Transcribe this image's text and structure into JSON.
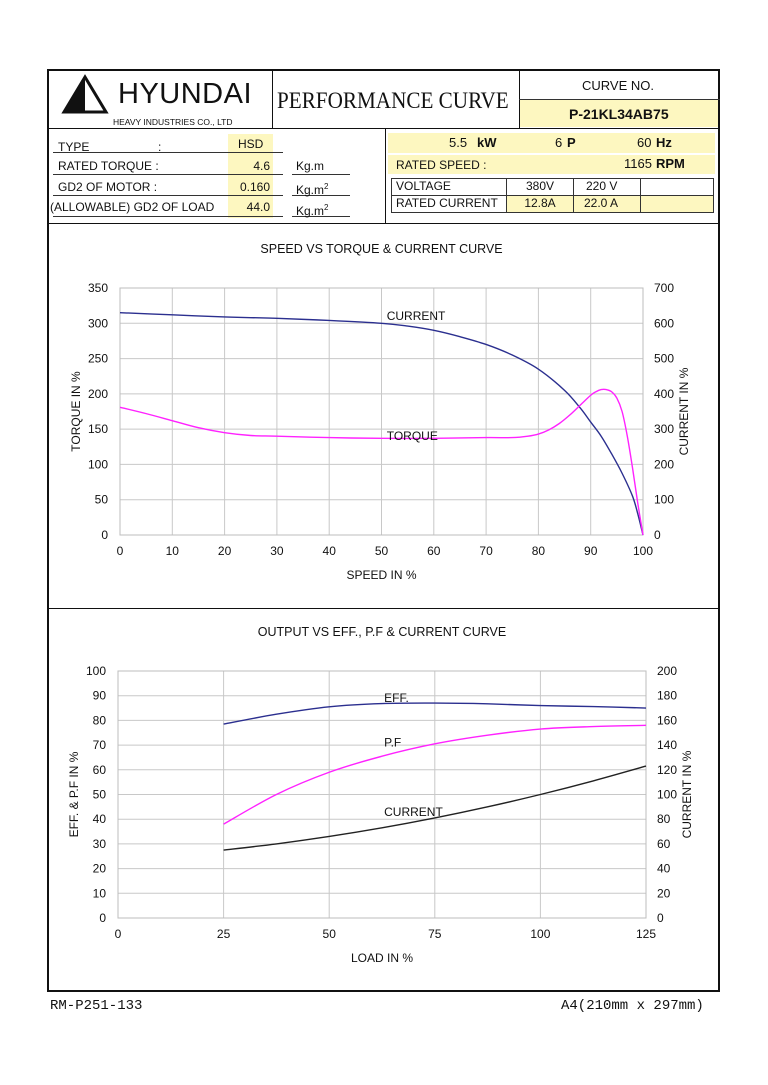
{
  "header": {
    "company_name": "HYUNDAI",
    "company_sub": "HEAVY INDUSTRIES CO., LTD",
    "doc_title": "PERFORMANCE  CURVE",
    "curve_no_label": "CURVE NO.",
    "curve_no": "P-21KL34AB75"
  },
  "specs": {
    "type_label": "TYPE",
    "type_colon": ":",
    "type_value": "HSD",
    "rated_torque_label": "RATED TORQUE :",
    "rated_torque_value": "4.6",
    "rated_torque_unit": "Kg.m",
    "gd2_motor_label": "GD2 OF MOTOR :",
    "gd2_motor_value": "0.160",
    "gd2_motor_unit": "Kg.m",
    "gd2_load_label": "(ALLOWABLE) GD2 OF LOAD",
    "gd2_load_value": "44.0",
    "gd2_load_unit": "Kg.m",
    "unit_sup": "2",
    "power_value": "5.5",
    "power_unit": "kW",
    "poles_value": "6",
    "poles_unit": "P",
    "freq_value": "60",
    "freq_unit": "Hz",
    "rated_speed_label": "RATED   SPEED :",
    "rated_speed_value": "1165",
    "rated_speed_unit": "RPM",
    "voltage_label": "VOLTAGE",
    "voltage_values": [
      "380V",
      "220 V",
      ""
    ],
    "current_label": "RATED CURRENT",
    "current_values": [
      "12.8A",
      "22.0 A",
      ""
    ]
  },
  "footer": {
    "left": "RM-P251-133",
    "right": "A4(210mm x 297mm)"
  },
  "colors": {
    "blue": "#2b2f8f",
    "magenta": "#ff22ff",
    "black": "#222222",
    "grid": "#c8c8c8",
    "highlight": "#fdf7c0"
  },
  "chart_data": [
    {
      "type": "line",
      "title": "SPEED VS TORQUE & CURRENT CURVE",
      "xlabel": "SPEED IN %",
      "ylabel": "TORQUE IN %",
      "y2label": "CURRENT IN %",
      "xlim": [
        0,
        100
      ],
      "ylim": [
        0,
        350
      ],
      "y2lim": [
        0,
        700
      ],
      "xticks": [
        "0",
        "10",
        "20",
        "30",
        "40",
        "50",
        "60",
        "70",
        "80",
        "90",
        "100"
      ],
      "yticks": [
        "0",
        "50",
        "100",
        "150",
        "200",
        "250",
        "300",
        "350"
      ],
      "y2ticks": [
        "0",
        "100",
        "200",
        "300",
        "400",
        "500",
        "600",
        "700"
      ],
      "grid": true,
      "series": [
        {
          "name": "CURRENT",
          "axis": "right",
          "color": "blue",
          "x": [
            0,
            10,
            20,
            30,
            40,
            50,
            55,
            60,
            65,
            70,
            75,
            80,
            85,
            88,
            90,
            92,
            94,
            96,
            98,
            99,
            100
          ],
          "y": [
            630,
            624,
            618,
            614,
            608,
            600,
            592,
            580,
            562,
            540,
            510,
            470,
            410,
            360,
            320,
            280,
            230,
            175,
            110,
            60,
            0
          ]
        },
        {
          "name": "TORQUE",
          "axis": "left",
          "color": "magenta",
          "x": [
            0,
            5,
            10,
            15,
            20,
            25,
            30,
            40,
            50,
            60,
            70,
            75,
            78,
            80,
            82,
            84,
            86,
            88,
            90,
            91,
            92,
            93,
            94,
            95,
            96,
            97,
            98,
            99,
            100
          ],
          "y": [
            181,
            172,
            162,
            152,
            145,
            141,
            140,
            138,
            137,
            137,
            138,
            138,
            140,
            143,
            149,
            158,
            170,
            184,
            198,
            203,
            206,
            206,
            203,
            194,
            175,
            140,
            95,
            45,
            0
          ]
        }
      ],
      "annotations": [
        {
          "text": "CURRENT",
          "x": 51,
          "y": 310
        },
        {
          "text": "TORQUE",
          "x": 51,
          "y": 140
        }
      ]
    },
    {
      "type": "line",
      "title": "OUTPUT VS EFF., P.F & CURRENT CURVE",
      "xlabel": "LOAD IN %",
      "ylabel": "EFF. & P.F IN %",
      "y2label": "CURRENT IN %",
      "xlim": [
        0,
        125
      ],
      "ylim": [
        0,
        100
      ],
      "y2lim": [
        0,
        200
      ],
      "xticks": [
        "0",
        "25",
        "50",
        "75",
        "100",
        "125"
      ],
      "yticks": [
        "0",
        "10",
        "20",
        "30",
        "40",
        "50",
        "60",
        "70",
        "80",
        "90",
        "100"
      ],
      "y2ticks": [
        "0",
        "20",
        "40",
        "60",
        "80",
        "100",
        "120",
        "140",
        "160",
        "180",
        "200"
      ],
      "grid": true,
      "series": [
        {
          "name": "EFF.",
          "axis": "left",
          "color": "blue",
          "x": [
            25,
            37.5,
            50,
            62.5,
            75,
            87.5,
            100,
            112.5,
            125
          ],
          "y": [
            78.5,
            82.5,
            85.5,
            86.8,
            87,
            86.7,
            86,
            85.6,
            85
          ]
        },
        {
          "name": "P.F",
          "axis": "left",
          "color": "magenta",
          "x": [
            25,
            37.5,
            50,
            62.5,
            75,
            87.5,
            100,
            112.5,
            125
          ],
          "y": [
            38,
            50,
            59,
            65.5,
            70.5,
            74,
            76.5,
            77.5,
            78
          ]
        },
        {
          "name": "CURRENT",
          "axis": "right",
          "color": "black",
          "x": [
            25,
            37.5,
            50,
            62.5,
            75,
            87.5,
            100,
            112.5,
            125
          ],
          "y": [
            55,
            60,
            66,
            73,
            81,
            90,
            100,
            111,
            123
          ]
        }
      ],
      "annotations": [
        {
          "text": "EFF.",
          "x": 63,
          "y": 89
        },
        {
          "text": "P.F",
          "x": 63,
          "y": 71
        },
        {
          "text": "CURRENT",
          "x": 63,
          "y": 43
        }
      ]
    }
  ]
}
